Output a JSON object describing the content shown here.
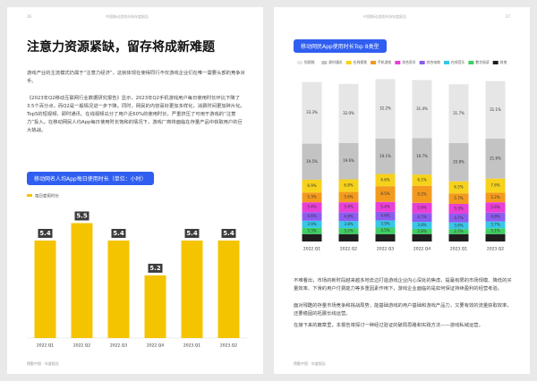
{
  "left_page": {
    "page_number": "26",
    "header": "中国移动游戏市场年度报告",
    "title": "注意力资源紧缺，留存将成新难题",
    "paragraphs": [
      "游戏产业的主流模式仍属于“注意力经济”，这就体现在使得同行不仅游戏企业们在唯一需要头部的竞争对手。",
      "《2023年Q2移动互联网行业数据研究报告》显示，2023年Q2手机游戏用户每日使用时长环比下降了3.5个百分点，而Q2是一般情况进一步下降。同时，网民的内容喜好更加多样化，消费时间更加碎片化。Top5的短视频、即时通讯、在线视频瓜分了用户近60%的使用时长，严重挤压了可用于游戏的“注意力”投入。在移动网民人均App每日使用时长饱和的情况下，游戏厂商将面临在存量产品中获取用户的巨大挑战。"
    ],
    "footer": "德勤中国 · 年度报告",
    "chart": {
      "type": "bar",
      "title": "移动网名人均App每日使用时长（单位：小时）",
      "legend": "每日使用时长",
      "categories": [
        "2022.Q1",
        "2022.Q2",
        "2022.Q3",
        "2022.Q4",
        "2023.Q1",
        "2023.Q2"
      ],
      "values": [
        5.4,
        5.5,
        5.4,
        5.2,
        5.4,
        5.4
      ],
      "color": "#f5c400",
      "ylim": [
        4.84,
        5.6
      ]
    }
  },
  "right_page": {
    "page_number": "27",
    "header": "中国移动游戏市场年度报告",
    "paragraphs": [
      "不难看出，市场的新时段越来越多地去边打造游戏企业内心深处的焦虑，提毫有限的市场规模、降低的买量效率、下滑的用户付费能力等多重因素作用下，游戏企业面临的是如何保证持续盈利的经营考验。",
      "面对残酷的存量市场竞争和挑战局势，能基础游戏的用户基础和游戏产品力，又要有效的流量获取效率，还要稳固的拓展长线运营。",
      "在接下来的篇章里，本报告将探讨一种经过验证的破局思路和实践方法——游戏私域运营。"
    ],
    "footer": "德勤中国 · 年度报告",
    "chart": {
      "type": "stacked_bar",
      "title": "移动网民App使用时长Top 8类型",
      "categories": [
        "2022.Q1",
        "2022.Q2",
        "2022.Q3",
        "2022.Q4",
        "2023.Q1",
        "2023.Q2"
      ],
      "ylim": [
        0,
        88
      ],
      "series": [
        {
          "name": "短视频",
          "color": "#e6e6e6",
          "values": [
            33.3,
            32.0,
            32.2,
            31.4,
            31.7,
            31.1
          ],
          "value_labels": [
            "33.3%",
            "32.0%",
            "32.2%",
            "31.4%",
            "31.7%",
            "31.1%"
          ]
        },
        {
          "name": "即时通讯",
          "color": "#c3c3c3",
          "values": [
            19.5,
            19.6,
            19.1,
            19.7,
            20.8,
            21.6
          ],
          "value_labels": [
            "19.5%",
            "19.6%",
            "19.1%",
            "19.7%",
            "20.8%",
            "21.6%"
          ]
        },
        {
          "name": "在线视频",
          "color": "#f7d21c",
          "values": [
            6.9,
            6.8,
            6.6,
            6.1,
            6.5,
            7.6
          ],
          "value_labels": [
            "6.9%",
            "6.8%",
            "6.6%",
            "6.1%",
            "6.5%",
            "7.6%"
          ]
        },
        {
          "name": "手机游戏",
          "color": "#f39a1e",
          "values": [
            5.3,
            5.6,
            8.5,
            9.2,
            5.7,
            5.2
          ],
          "value_labels": [
            "5.3%",
            "5.6%",
            "8.5%",
            "9.2%",
            "5.7%",
            "5.2%"
          ]
        },
        {
          "name": "综合资讯",
          "color": "#e83fd6",
          "values": [
            5.4,
            5.4,
            5.4,
            5.6,
            5.3,
            5.6
          ],
          "value_labels": [
            "5.4%",
            "5.4%",
            "5.4%",
            "5.6%",
            "5.3%",
            "5.6%"
          ]
        },
        {
          "name": "综合电商",
          "color": "#8c5cf0",
          "values": [
            4.6,
            4.8,
            4.6,
            4.7,
            4.7,
            4.8
          ],
          "value_labels": [
            "4.6%",
            "4.8%",
            "4.6%",
            "4.7%",
            "4.7%",
            "4.8%"
          ]
        },
        {
          "name": "在线音乐",
          "color": "#37c7e6",
          "values": [
            3.9,
            3.8,
            3.9,
            3.8,
            3.6,
            3.7
          ],
          "value_labels": [
            "3.9%",
            "3.8%",
            "3.9%",
            "3.8%",
            "3.6%",
            "3.7%"
          ]
        },
        {
          "name": "数字阅读",
          "color": "#3fcf63",
          "values": [
            3.3,
            3.2,
            3.5,
            2.8,
            2.7,
            3.1
          ],
          "value_labels": [
            "3.3%",
            "3.2%",
            "3.5%",
            "2.8%",
            "2.7%",
            "3.1%"
          ]
        },
        {
          "name": "其他",
          "color": "#1e1e1e",
          "values": [
            4.0,
            4.0,
            4.0,
            4.0,
            4.0,
            4.0
          ]
        }
      ]
    }
  }
}
